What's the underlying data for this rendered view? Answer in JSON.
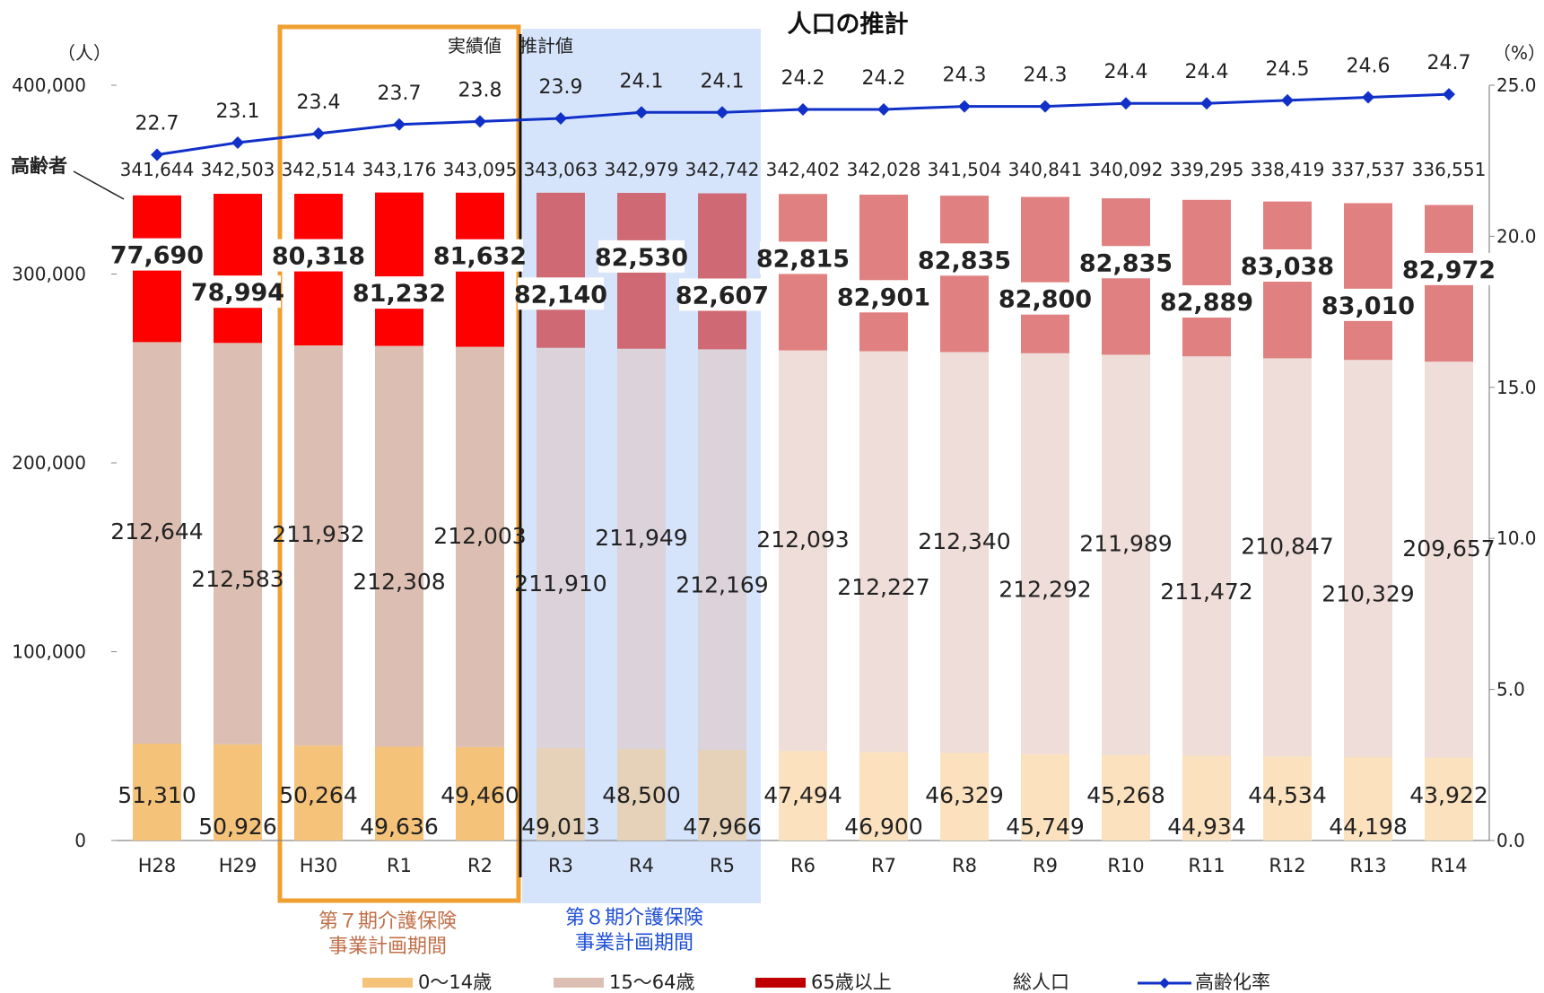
{
  "chart_data": {
    "type": "bar",
    "title": "人口の推計",
    "ylabel_left": "（人）",
    "ylabel_right": "（%）",
    "ylim": [
      0,
      400000
    ],
    "y2lim": [
      0,
      25
    ],
    "y_ticks": [
      "0",
      "100,000",
      "200,000",
      "300,000",
      "400,000"
    ],
    "y2_ticks": [
      "0.0",
      "5.0",
      "10.0",
      "15.0",
      "20.0",
      "25.0"
    ],
    "categories": [
      "H28",
      "H29",
      "H30",
      "R1",
      "R2",
      "R3",
      "R4",
      "R5",
      "R6",
      "R7",
      "R8",
      "R9",
      "R10",
      "R11",
      "R12",
      "R13",
      "R14"
    ],
    "series": [
      {
        "name": "0～14歳",
        "color": "#f5c27a",
        "values": [
          51310,
          50926,
          50264,
          49636,
          49460,
          49013,
          48500,
          47966,
          47494,
          46900,
          46329,
          45749,
          45268,
          44934,
          44534,
          44198,
          43922
        ],
        "labels": [
          "51,310",
          "50,926",
          "50,264",
          "49,636",
          "49,460",
          "49,013",
          "48,500",
          "47,966",
          "47,494",
          "46,900",
          "46,329",
          "45,749",
          "45,268",
          "44,934",
          "44,534",
          "44,198",
          "43,922"
        ]
      },
      {
        "name": "15～64歳",
        "color": "#dcbfb2",
        "values": [
          212644,
          212583,
          211932,
          212308,
          212003,
          211910,
          211949,
          212169,
          212093,
          212227,
          212340,
          212292,
          211989,
          211472,
          210847,
          210329,
          209657
        ],
        "labels": [
          "212,644",
          "212,583",
          "211,932",
          "212,308",
          "212,003",
          "211,910",
          "211,949",
          "212,169",
          "212,093",
          "212,227",
          "212,340",
          "212,292",
          "211,989",
          "211,472",
          "210,847",
          "210,329",
          "209,657"
        ]
      },
      {
        "name": "65歳以上",
        "color": "#ff0000",
        "values": [
          77690,
          78994,
          80318,
          81232,
          81632,
          82140,
          82530,
          82607,
          82815,
          82901,
          82835,
          82800,
          82835,
          82889,
          83038,
          83010,
          82972
        ],
        "labels": [
          "77,690",
          "78,994",
          "80,318",
          "81,232",
          "81,632",
          "82,140",
          "82,530",
          "82,607",
          "82,815",
          "82,901",
          "82,835",
          "82,800",
          "82,835",
          "82,889",
          "83,038",
          "83,010",
          "82,972"
        ]
      },
      {
        "name": "総人口",
        "values": [
          341644,
          342503,
          342514,
          343176,
          343095,
          343063,
          342979,
          342742,
          342402,
          342028,
          341504,
          340841,
          340092,
          339295,
          338419,
          337537,
          336551
        ],
        "labels": [
          "341,644",
          "342,503",
          "342,514",
          "343,176",
          "343,095",
          "343,063",
          "342,979",
          "342,742",
          "342,402",
          "342,028",
          "341,504",
          "340,841",
          "340,092",
          "339,295",
          "338,419",
          "337,537",
          "336,551"
        ]
      },
      {
        "name": "高齢化率",
        "color": "#1030c8",
        "values": [
          22.7,
          23.1,
          23.4,
          23.7,
          23.8,
          23.9,
          24.1,
          24.1,
          24.2,
          24.2,
          24.3,
          24.3,
          24.4,
          24.4,
          24.5,
          24.6,
          24.7
        ],
        "labels": [
          "22.7",
          "23.1",
          "23.4",
          "23.7",
          "23.8",
          "23.9",
          "24.1",
          "24.1",
          "24.2",
          "24.2",
          "24.3",
          "24.3",
          "24.4",
          "24.4",
          "24.5",
          "24.6",
          "24.7"
        ]
      }
    ],
    "annotations": {
      "actual": "実績値",
      "estimate": "推計値",
      "elderly_callout": "高齢者",
      "period7": [
        "第７期介護保険",
        "事業計画期間"
      ],
      "period8": [
        "第８期介護保険",
        "事業計画期間"
      ]
    },
    "legend_position": "bottom",
    "grid": false
  }
}
